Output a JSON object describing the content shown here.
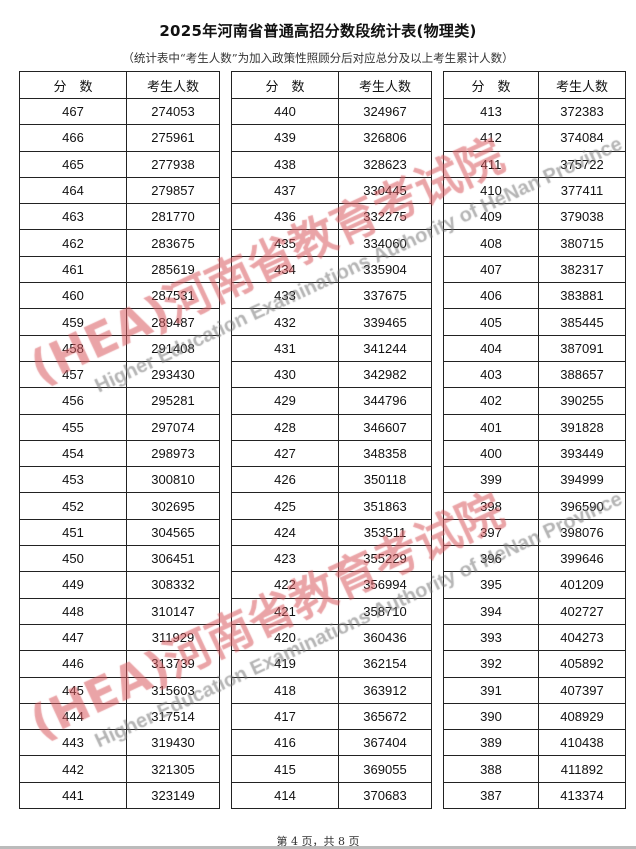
{
  "header": {
    "title": "2025年河南省普通高招分数段统计表(物理类)",
    "subtitle": "（统计表中“考生人数”为加入政策性照顾分后对应总分及以上考生累计人数）"
  },
  "columns": {
    "score": "分　数",
    "count": "考生人数"
  },
  "tables": [
    {
      "rows": [
        [
          "467",
          "274053"
        ],
        [
          "466",
          "275961"
        ],
        [
          "465",
          "277938"
        ],
        [
          "464",
          "279857"
        ],
        [
          "463",
          "281770"
        ],
        [
          "462",
          "283675"
        ],
        [
          "461",
          "285619"
        ],
        [
          "460",
          "287531"
        ],
        [
          "459",
          "289487"
        ],
        [
          "458",
          "291408"
        ],
        [
          "457",
          "293430"
        ],
        [
          "456",
          "295281"
        ],
        [
          "455",
          "297074"
        ],
        [
          "454",
          "298973"
        ],
        [
          "453",
          "300810"
        ],
        [
          "452",
          "302695"
        ],
        [
          "451",
          "304565"
        ],
        [
          "450",
          "306451"
        ],
        [
          "449",
          "308332"
        ],
        [
          "448",
          "310147"
        ],
        [
          "447",
          "311929"
        ],
        [
          "446",
          "313739"
        ],
        [
          "445",
          "315603"
        ],
        [
          "444",
          "317514"
        ],
        [
          "443",
          "319430"
        ],
        [
          "442",
          "321305"
        ],
        [
          "441",
          "323149"
        ]
      ]
    },
    {
      "rows": [
        [
          "440",
          "324967"
        ],
        [
          "439",
          "326806"
        ],
        [
          "438",
          "328623"
        ],
        [
          "437",
          "330445"
        ],
        [
          "436",
          "332275"
        ],
        [
          "435",
          "334060"
        ],
        [
          "434",
          "335904"
        ],
        [
          "433",
          "337675"
        ],
        [
          "432",
          "339465"
        ],
        [
          "431",
          "341244"
        ],
        [
          "430",
          "342982"
        ],
        [
          "429",
          "344796"
        ],
        [
          "428",
          "346607"
        ],
        [
          "427",
          "348358"
        ],
        [
          "426",
          "350118"
        ],
        [
          "425",
          "351863"
        ],
        [
          "424",
          "353511"
        ],
        [
          "423",
          "355229"
        ],
        [
          "422",
          "356994"
        ],
        [
          "421",
          "358710"
        ],
        [
          "420",
          "360436"
        ],
        [
          "419",
          "362154"
        ],
        [
          "418",
          "363912"
        ],
        [
          "417",
          "365672"
        ],
        [
          "416",
          "367404"
        ],
        [
          "415",
          "369055"
        ],
        [
          "414",
          "370683"
        ]
      ]
    },
    {
      "rows": [
        [
          "413",
          "372383"
        ],
        [
          "412",
          "374084"
        ],
        [
          "411",
          "375722"
        ],
        [
          "410",
          "377411"
        ],
        [
          "409",
          "379038"
        ],
        [
          "408",
          "380715"
        ],
        [
          "407",
          "382317"
        ],
        [
          "406",
          "383881"
        ],
        [
          "405",
          "385445"
        ],
        [
          "404",
          "387091"
        ],
        [
          "403",
          "388657"
        ],
        [
          "402",
          "390255"
        ],
        [
          "401",
          "391828"
        ],
        [
          "400",
          "393449"
        ],
        [
          "399",
          "394999"
        ],
        [
          "398",
          "396590"
        ],
        [
          "397",
          "398076"
        ],
        [
          "396",
          "399646"
        ],
        [
          "395",
          "401209"
        ],
        [
          "394",
          "402727"
        ],
        [
          "393",
          "404273"
        ],
        [
          "392",
          "405892"
        ],
        [
          "391",
          "407397"
        ],
        [
          "390",
          "408929"
        ],
        [
          "389",
          "410438"
        ],
        [
          "388",
          "411892"
        ],
        [
          "387",
          "413374"
        ]
      ]
    }
  ],
  "watermark": {
    "cn": "河南省教育考试院",
    "logo": "HEA",
    "en": "Higher Education Examinations Authority of HeNan Province",
    "color_red": "#d9595f",
    "color_grey": "#777777"
  },
  "footer": {
    "page": "第 4 页，共 8 页"
  }
}
